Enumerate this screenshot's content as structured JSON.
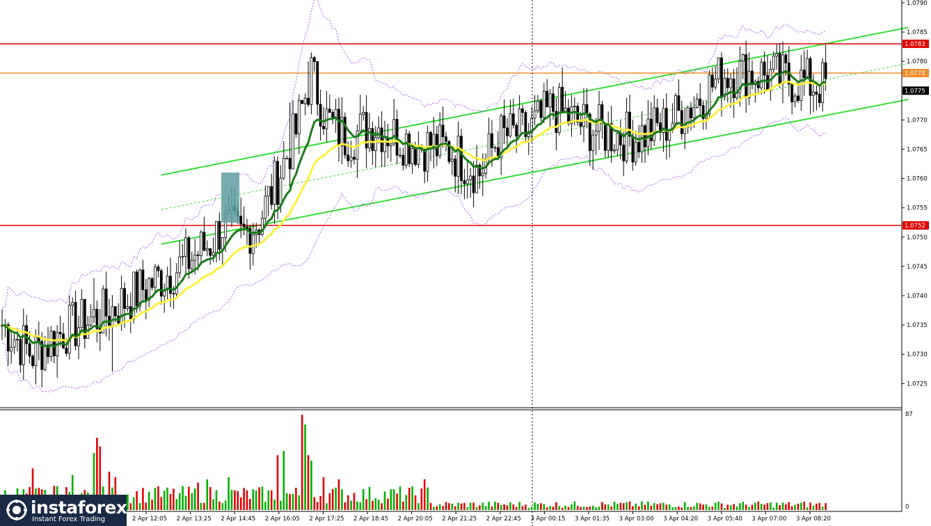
{
  "branding": {
    "name": "instaforex",
    "tagline": "Instant Forex Trading"
  },
  "chart_data": {
    "type": "candlestick",
    "price_axis": {
      "ylim": [
        1.0721,
        1.079
      ],
      "ticks": [
        "1.0790",
        "1.0785",
        "1.0780",
        "1.0775",
        "1.0770",
        "1.0765",
        "1.0760",
        "1.0755",
        "1.0750",
        "1.0745",
        "1.0740",
        "1.0735",
        "1.0730",
        "1.0725"
      ],
      "current_price": "1.0775",
      "current_price_color": "#000000"
    },
    "time_axis": {
      "ticks": [
        "2 Apr 12:05",
        "2 Apr 13:25",
        "2 Apr 14:45",
        "2 Apr 16:05",
        "2 Apr 17:25",
        "2 Apr 18:45",
        "2 Apr 20:05",
        "2 Apr 21:25",
        "2 Apr 22:45",
        "3 Apr 00:15",
        "3 Apr 01:35",
        "3 Apr 03:00",
        "3 Apr 04:20",
        "3 Apr 05:40",
        "3 Apr 07:00",
        "3 Apr 08:20"
      ]
    },
    "levels": [
      {
        "price": 1.0783,
        "label": "1.0783",
        "color": "#e00000"
      },
      {
        "price": 1.0778,
        "label": "1.0778",
        "color": "#f28c28"
      },
      {
        "price": 1.0752,
        "label": "1.0752",
        "color": "#e00000"
      }
    ],
    "anchors": [
      {
        "i": 0,
        "p": 1.0735
      },
      {
        "i": 10,
        "p": 1.073
      },
      {
        "i": 20,
        "p": 1.0734
      },
      {
        "i": 34,
        "p": 1.0737
      },
      {
        "i": 48,
        "p": 1.0742
      },
      {
        "i": 58,
        "p": 1.0745
      },
      {
        "i": 68,
        "p": 1.0749
      },
      {
        "i": 72,
        "p": 1.0752
      },
      {
        "i": 78,
        "p": 1.075
      },
      {
        "i": 84,
        "p": 1.0753
      },
      {
        "i": 90,
        "p": 1.076
      },
      {
        "i": 96,
        "p": 1.0768
      },
      {
        "i": 101,
        "p": 1.0778
      },
      {
        "i": 106,
        "p": 1.077
      },
      {
        "i": 112,
        "p": 1.0767
      },
      {
        "i": 122,
        "p": 1.0769
      },
      {
        "i": 134,
        "p": 1.0766
      },
      {
        "i": 146,
        "p": 1.0765
      },
      {
        "i": 156,
        "p": 1.0761
      },
      {
        "i": 162,
        "p": 1.0767
      },
      {
        "i": 172,
        "p": 1.0768
      },
      {
        "i": 180,
        "p": 1.0772
      },
      {
        "i": 186,
        "p": 1.077
      },
      {
        "i": 196,
        "p": 1.0768
      },
      {
        "i": 206,
        "p": 1.0767
      },
      {
        "i": 216,
        "p": 1.0769
      },
      {
        "i": 226,
        "p": 1.0773
      },
      {
        "i": 236,
        "p": 1.0778
      },
      {
        "i": 246,
        "p": 1.0778
      },
      {
        "i": 256,
        "p": 1.0777
      },
      {
        "i": 266,
        "p": 1.0776
      }
    ],
    "spikes": [
      {
        "i": 30,
        "p": 1.0743
      },
      {
        "i": 36,
        "p": 1.0727
      },
      {
        "i": 18,
        "p": 1.0726
      },
      {
        "i": 74,
        "p": 1.0757
      },
      {
        "i": 100,
        "p": 1.078
      },
      {
        "i": 94,
        "p": 1.0773
      },
      {
        "i": 158,
        "p": 1.076
      },
      {
        "i": 182,
        "p": 1.0774
      },
      {
        "i": 240,
        "p": 1.0779
      }
    ],
    "volume": {
      "max_label": "87",
      "zero_label": "0",
      "ylim": [
        0,
        87
      ],
      "bars": [
        {
          "i": 10,
          "v": 38
        },
        {
          "i": 17,
          "v": 22
        },
        {
          "i": 23,
          "v": 32
        },
        {
          "i": 30,
          "v": 52
        },
        {
          "i": 31,
          "v": 66
        },
        {
          "i": 32,
          "v": 58
        },
        {
          "i": 35,
          "v": 35
        },
        {
          "i": 37,
          "v": 30
        },
        {
          "i": 50,
          "v": 20
        },
        {
          "i": 64,
          "v": 25
        },
        {
          "i": 67,
          "v": 28
        },
        {
          "i": 74,
          "v": 30
        },
        {
          "i": 90,
          "v": 50
        },
        {
          "i": 92,
          "v": 54
        },
        {
          "i": 98,
          "v": 87
        },
        {
          "i": 99,
          "v": 78
        },
        {
          "i": 100,
          "v": 50
        },
        {
          "i": 101,
          "v": 45
        },
        {
          "i": 105,
          "v": 30
        },
        {
          "i": 110,
          "v": 28
        },
        {
          "i": 138,
          "v": 28
        }
      ]
    },
    "bands": {
      "upper_channel": [
        [
          52,
          1.07606
        ],
        [
          296,
          1.07858
        ]
      ],
      "lower_channel": [
        [
          52,
          1.07488
        ],
        [
          296,
          1.07735
        ]
      ]
    }
  }
}
